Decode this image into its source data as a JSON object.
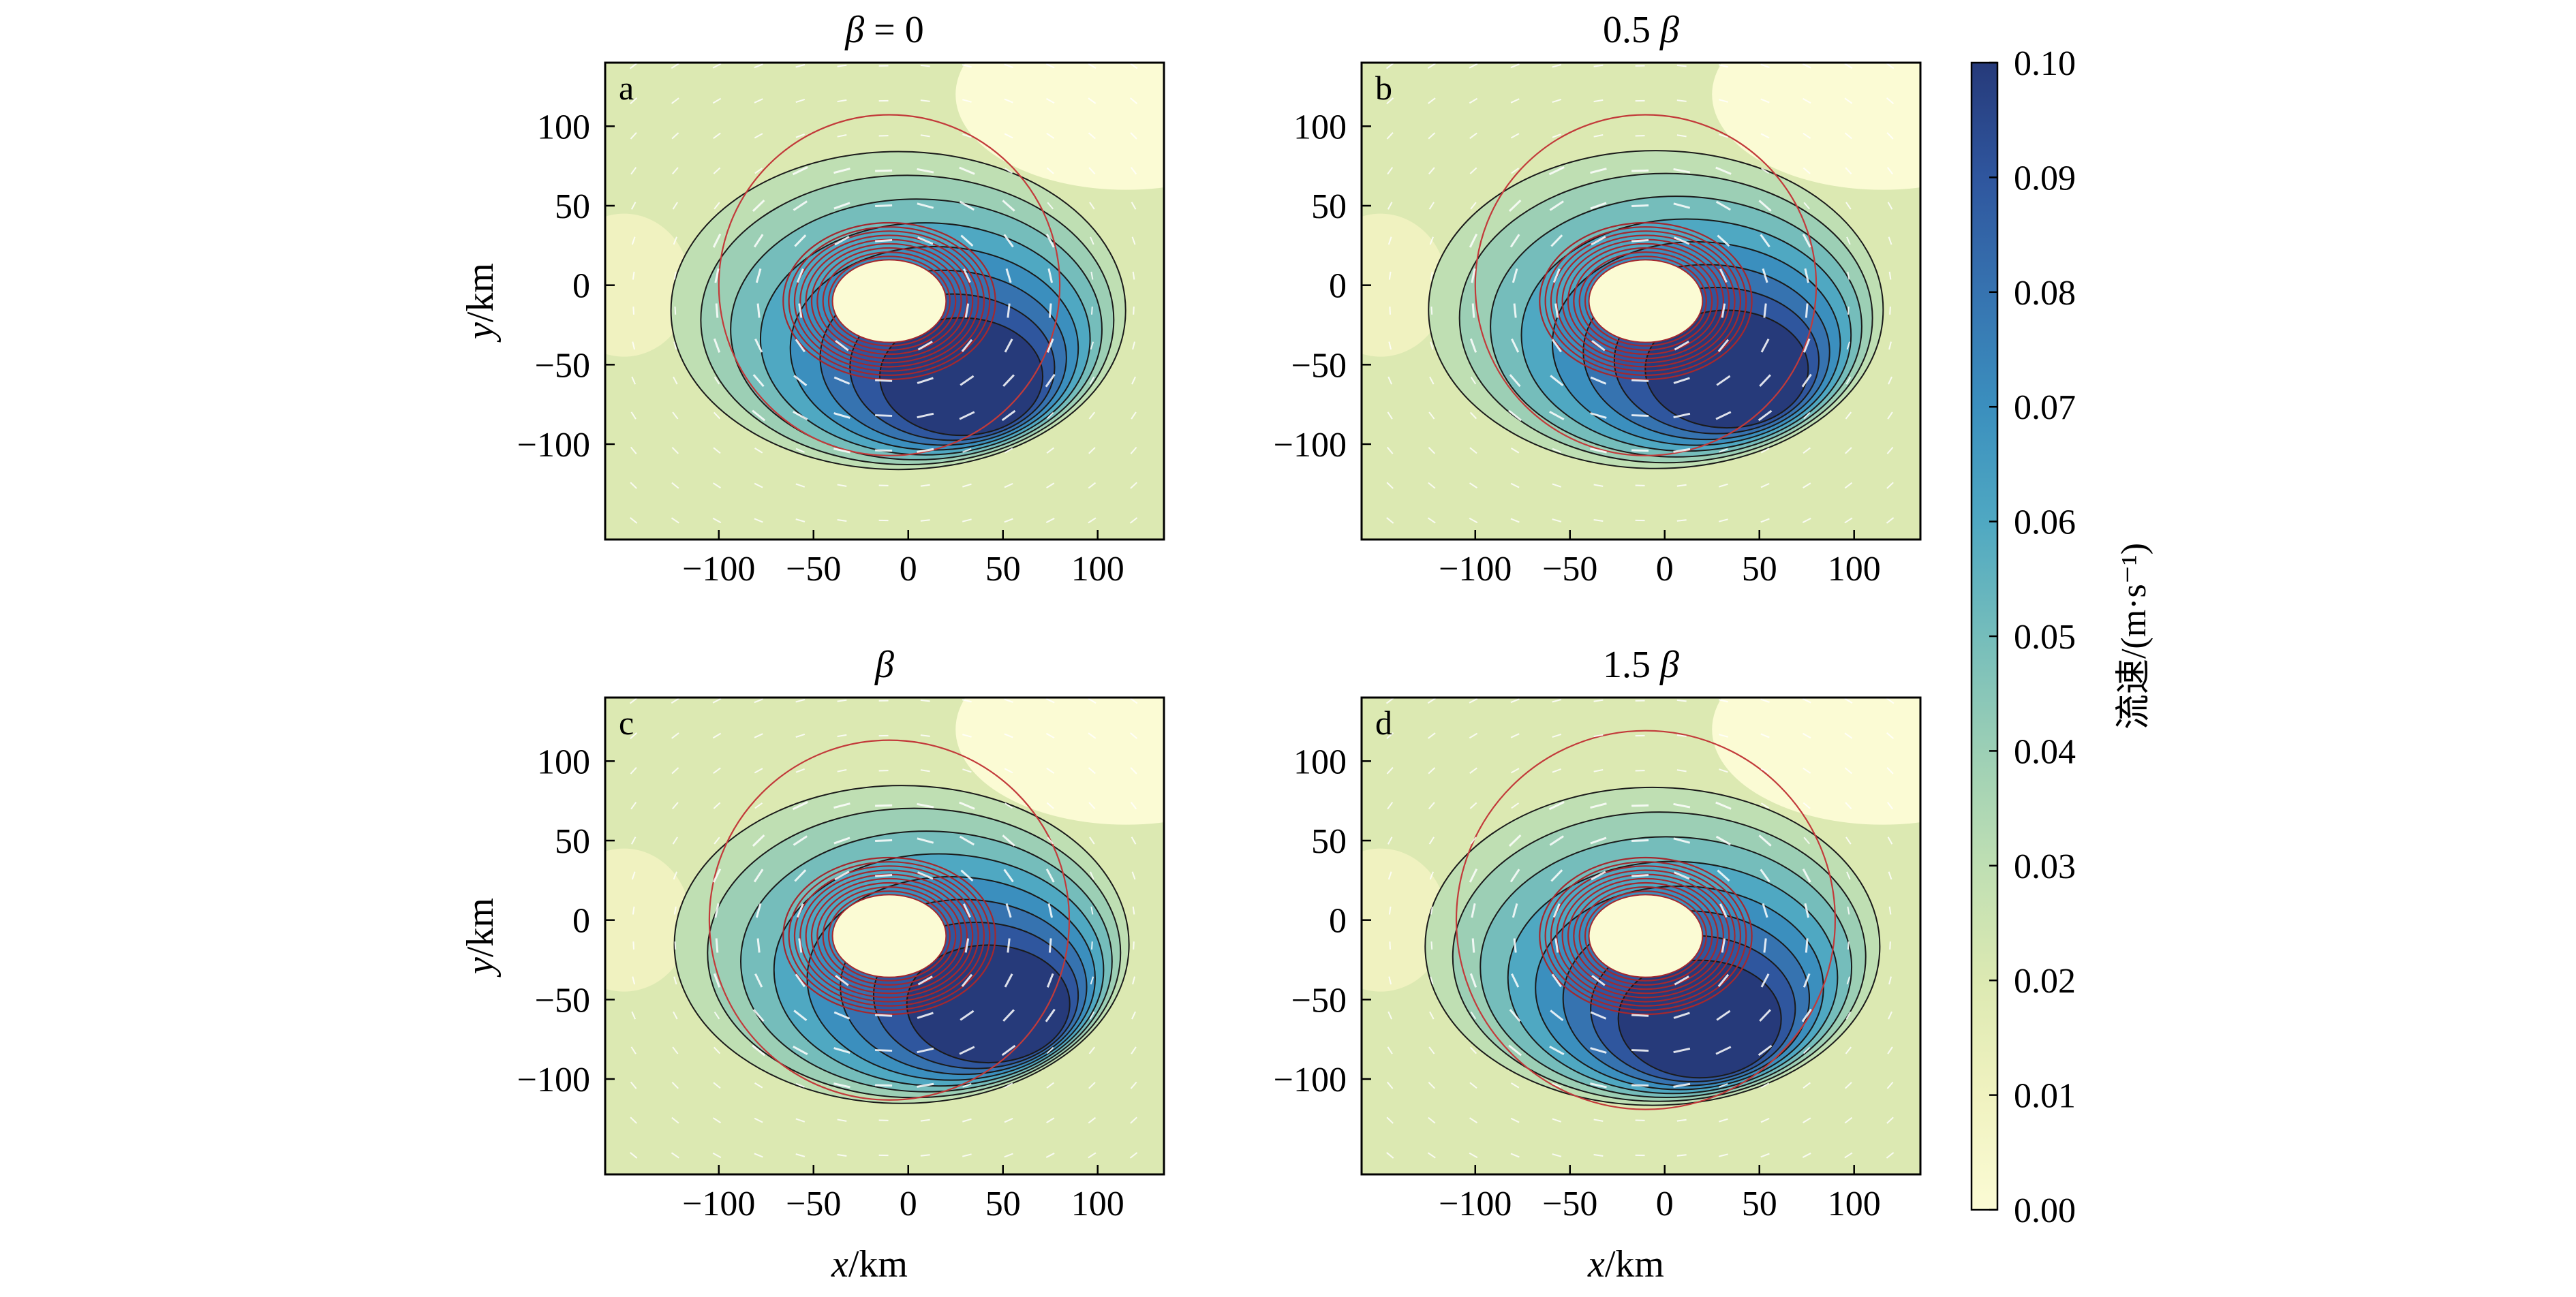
{
  "figure": {
    "colorbar": {
      "label": "流速/(m·s⁻¹)",
      "ticks": [
        "0.10",
        "0.09",
        "0.08",
        "0.07",
        "0.06",
        "0.05",
        "0.04",
        "0.03",
        "0.02",
        "0.01",
        "0.00"
      ],
      "range": [
        0.0,
        0.1
      ],
      "colormap": [
        "#fbfbd4",
        "#f0f2c0",
        "#dce9b2",
        "#bfdfb3",
        "#9ccfb5",
        "#75bdbb",
        "#4fa8c2",
        "#3b8fbe",
        "#3673b0",
        "#2f569e",
        "#263a7a"
      ]
    }
  },
  "chart_data": [
    {
      "type": "heatmap",
      "panel_letter": "a",
      "title_prefix": "",
      "title_symbol": "β",
      "title_suffix": " = 0",
      "xlabel": "",
      "ylabel": "y/km",
      "xticks": [
        "−100",
        "−50",
        "0",
        "50",
        "100"
      ],
      "yticks": [
        "100",
        "50",
        "0",
        "−50",
        "−100"
      ],
      "xlim": [
        -160,
        135
      ],
      "ylim": [
        -160,
        140
      ],
      "grid": false,
      "vortex_center_km": [
        -10,
        -10
      ],
      "max_speed_location_km": [
        30,
        -60
      ],
      "max_speed_ms": 0.1,
      "red_circle_radius_km": 90
    },
    {
      "type": "heatmap",
      "panel_letter": "b",
      "title_prefix": "0.5 ",
      "title_symbol": "β",
      "title_suffix": "",
      "xlabel": "",
      "ylabel": "",
      "xticks": [
        "−100",
        "−50",
        "0",
        "50",
        "100"
      ],
      "yticks": [
        "100",
        "50",
        "0",
        "−50",
        "−100"
      ],
      "xlim": [
        -160,
        135
      ],
      "ylim": [
        -160,
        140
      ],
      "grid": false,
      "vortex_center_km": [
        -10,
        -10
      ],
      "max_speed_location_km": [
        35,
        -55
      ],
      "max_speed_ms": 0.1,
      "red_circle_radius_km": 90
    },
    {
      "type": "heatmap",
      "panel_letter": "c",
      "title_prefix": "",
      "title_symbol": "β",
      "title_suffix": "",
      "xlabel": "x/km",
      "ylabel": "y/km",
      "xticks": [
        "−100",
        "−50",
        "0",
        "50",
        "100"
      ],
      "yticks": [
        "100",
        "50",
        "0",
        "−50",
        "−100"
      ],
      "xlim": [
        -160,
        135
      ],
      "ylim": [
        -160,
        140
      ],
      "grid": false,
      "vortex_center_km": [
        -10,
        -10
      ],
      "max_speed_location_km": [
        45,
        -55
      ],
      "max_speed_ms": 0.1,
      "red_circle_radius_km": 95
    },
    {
      "type": "heatmap",
      "panel_letter": "d",
      "title_prefix": "1.5 ",
      "title_symbol": "β",
      "title_suffix": "",
      "xlabel": "x/km",
      "ylabel": "",
      "xticks": [
        "−100",
        "−50",
        "0",
        "50",
        "100"
      ],
      "yticks": [
        "100",
        "50",
        "0",
        "−50",
        "−100"
      ],
      "xlim": [
        -160,
        135
      ],
      "ylim": [
        -160,
        140
      ],
      "grid": false,
      "vortex_center_km": [
        -10,
        -10
      ],
      "max_speed_location_km": [
        20,
        -65
      ],
      "max_speed_ms": 0.1,
      "red_circle_radius_km": 100
    }
  ]
}
